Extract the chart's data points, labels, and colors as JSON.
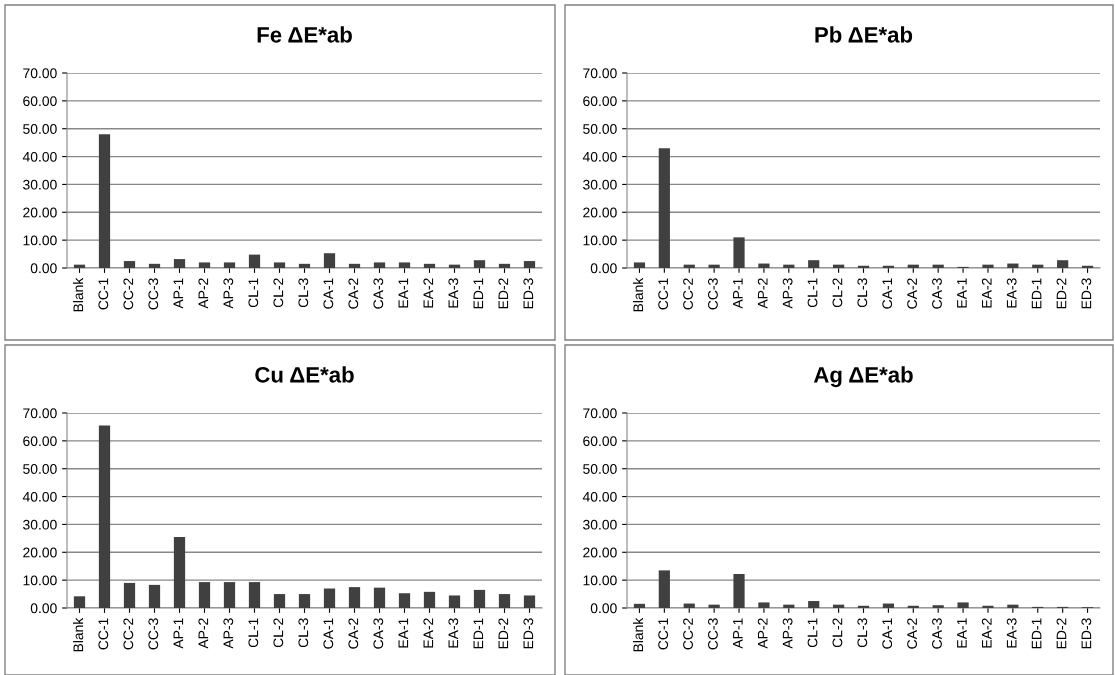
{
  "chart_data": [
    {
      "type": "bar",
      "title": "Fe ΔE*ab",
      "categories": [
        "Blank",
        "CC-1",
        "CC-2",
        "CC-3",
        "AP-1",
        "AP-2",
        "AP-3",
        "CL-1",
        "CL-2",
        "CL-3",
        "CA-1",
        "CA-2",
        "CA-3",
        "EA-1",
        "EA-2",
        "EA-3",
        "ED-1",
        "ED-2",
        "ED-3"
      ],
      "values": [
        1.2,
        48,
        2.5,
        1.5,
        3.2,
        2.0,
        2.0,
        4.8,
        2.0,
        1.5,
        5.3,
        1.5,
        2.0,
        2.0,
        1.5,
        1.2,
        2.8,
        1.5,
        2.5
      ],
      "color": "#404040",
      "ylim": [
        0,
        70
      ],
      "yticks": [
        {
          "value": 0,
          "label": "0.00"
        },
        {
          "value": 10,
          "label": "10.00"
        },
        {
          "value": 20,
          "label": "20.00"
        },
        {
          "value": 30,
          "label": "30.00"
        },
        {
          "value": 40,
          "label": "40.00"
        },
        {
          "value": 50,
          "label": "50.00"
        },
        {
          "value": 60,
          "label": "60.00"
        },
        {
          "value": 70,
          "label": "70.00"
        }
      ],
      "grid": "y"
    },
    {
      "type": "bar",
      "title": "Pb ΔE*ab",
      "categories": [
        "Blank",
        "CC-1",
        "CC-2",
        "CC-3",
        "AP-1",
        "AP-2",
        "AP-3",
        "CL-1",
        "CL-2",
        "CL-3",
        "CA-1",
        "CA-2",
        "CA-3",
        "EA-1",
        "EA-2",
        "EA-3",
        "ED-1",
        "ED-2",
        "ED-3"
      ],
      "values": [
        2.0,
        43,
        1.2,
        1.2,
        11,
        1.6,
        1.2,
        2.8,
        1.2,
        0.8,
        0.8,
        1.2,
        1.2,
        0.4,
        1.2,
        1.6,
        1.2,
        2.8,
        0.8
      ],
      "color": "#404040",
      "ylim": [
        0,
        70
      ],
      "yticks": [
        {
          "value": 0,
          "label": "0.00"
        },
        {
          "value": 10,
          "label": "10.00"
        },
        {
          "value": 20,
          "label": "20.00"
        },
        {
          "value": 30,
          "label": "30.00"
        },
        {
          "value": 40,
          "label": "40.00"
        },
        {
          "value": 50,
          "label": "50.00"
        },
        {
          "value": 60,
          "label": "60.00"
        },
        {
          "value": 70,
          "label": "70.00"
        }
      ],
      "grid": "y"
    },
    {
      "type": "bar",
      "title": "Cu ΔE*ab",
      "categories": [
        "Blank",
        "CC-1",
        "CC-2",
        "CC-3",
        "AP-1",
        "AP-2",
        "AP-3",
        "CL-1",
        "CL-2",
        "CL-3",
        "CA-1",
        "CA-2",
        "CA-3",
        "EA-1",
        "EA-2",
        "EA-3",
        "ED-1",
        "ED-2",
        "ED-3"
      ],
      "values": [
        4.2,
        65.5,
        9,
        8.3,
        25.5,
        9.3,
        9.3,
        9.3,
        5,
        5,
        7,
        7.5,
        7.3,
        5.3,
        5.8,
        4.5,
        6.5,
        5,
        4.5
      ],
      "color": "#404040",
      "ylim": [
        0,
        70
      ],
      "yticks": [
        {
          "value": 0,
          "label": "0.00"
        },
        {
          "value": 10,
          "label": "10.00"
        },
        {
          "value": 20,
          "label": "20.00"
        },
        {
          "value": 30,
          "label": "30.00"
        },
        {
          "value": 40,
          "label": "40.00"
        },
        {
          "value": 50,
          "label": "50.00"
        },
        {
          "value": 60,
          "label": "60.00"
        },
        {
          "value": 70,
          "label": "70.00"
        }
      ],
      "grid": "y"
    },
    {
      "type": "bar",
      "title": "Ag ΔE*ab",
      "categories": [
        "Blank",
        "CC-1",
        "CC-2",
        "CC-3",
        "AP-1",
        "AP-2",
        "AP-3",
        "CL-1",
        "CL-2",
        "CL-3",
        "CA-1",
        "CA-2",
        "CA-3",
        "EA-1",
        "EA-2",
        "EA-3",
        "ED-1",
        "ED-2",
        "ED-3"
      ],
      "values": [
        1.5,
        13.5,
        1.6,
        1.2,
        12.2,
        2.0,
        1.2,
        2.5,
        1.2,
        0.8,
        1.6,
        0.8,
        1.0,
        2.0,
        0.8,
        1.2,
        0.4,
        0.4,
        0.3
      ],
      "color": "#404040",
      "ylim": [
        0,
        70
      ],
      "yticks": [
        {
          "value": 0,
          "label": "0.00"
        },
        {
          "value": 10,
          "label": "10.00"
        },
        {
          "value": 20,
          "label": "20.00"
        },
        {
          "value": 30,
          "label": "30.00"
        },
        {
          "value": 40,
          "label": "40.00"
        },
        {
          "value": 50,
          "label": "50.00"
        },
        {
          "value": 60,
          "label": "60.00"
        },
        {
          "value": 70,
          "label": "70.00"
        }
      ],
      "grid": "y"
    }
  ]
}
